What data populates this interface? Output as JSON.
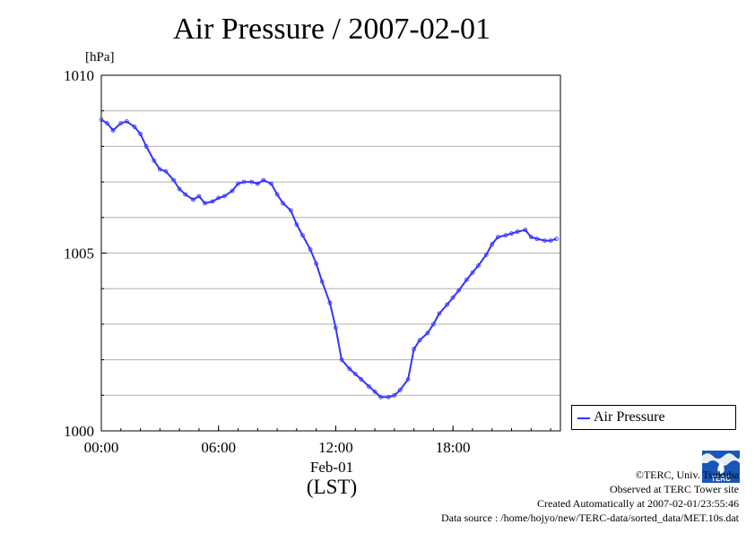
{
  "chart_data": {
    "type": "line",
    "title": "Air Pressure / 2007-02-01",
    "ylabel": "[hPa]",
    "ylim": [
      1000,
      1010
    ],
    "yticks": [
      "1000",
      "1005",
      "1010"
    ],
    "xlim": [
      0,
      23.5
    ],
    "xticks": [
      "00:00",
      "06:00",
      "12:00",
      "18:00"
    ],
    "date_label": "Feb-01",
    "tz_label": "(LST)",
    "grid": true,
    "legend_position": "right-bottom",
    "series": [
      {
        "name": "Air Pressure",
        "color": "#3333ff",
        "x": [
          0,
          0.3,
          0.6,
          1.0,
          1.3,
          1.7,
          2.0,
          2.3,
          2.7,
          3.0,
          3.3,
          3.7,
          4.0,
          4.3,
          4.7,
          5.0,
          5.3,
          5.7,
          6.0,
          6.3,
          6.7,
          7.0,
          7.3,
          7.7,
          8.0,
          8.3,
          8.7,
          9.0,
          9.3,
          9.7,
          10.0,
          10.3,
          10.7,
          11.0,
          11.3,
          11.7,
          12.0,
          12.3,
          12.7,
          13.0,
          13.3,
          13.7,
          14.0,
          14.3,
          14.7,
          15.0,
          15.3,
          15.7,
          16.0,
          16.3,
          16.7,
          17.0,
          17.3,
          17.7,
          18.0,
          18.3,
          18.7,
          19.0,
          19.3,
          19.7,
          20.0,
          20.3,
          20.7,
          21.0,
          21.3,
          21.7,
          22.0,
          22.3,
          22.7,
          23.0,
          23.3
        ],
        "y": [
          1008.75,
          1008.65,
          1008.45,
          1008.65,
          1008.7,
          1008.55,
          1008.35,
          1008.0,
          1007.6,
          1007.35,
          1007.3,
          1007.05,
          1006.8,
          1006.65,
          1006.5,
          1006.6,
          1006.4,
          1006.45,
          1006.55,
          1006.6,
          1006.75,
          1006.95,
          1007.0,
          1007.0,
          1006.95,
          1007.05,
          1006.95,
          1006.65,
          1006.4,
          1006.2,
          1005.8,
          1005.5,
          1005.1,
          1004.7,
          1004.2,
          1003.6,
          1002.9,
          1002.0,
          1001.75,
          1001.6,
          1001.45,
          1001.25,
          1001.1,
          1000.95,
          1000.95,
          1001.0,
          1001.15,
          1001.45,
          1002.3,
          1002.55,
          1002.75,
          1003.0,
          1003.3,
          1003.55,
          1003.75,
          1003.95,
          1004.25,
          1004.45,
          1004.65,
          1004.95,
          1005.25,
          1005.45,
          1005.5,
          1005.55,
          1005.6,
          1005.65,
          1005.45,
          1005.4,
          1005.35,
          1005.35,
          1005.4
        ]
      }
    ]
  },
  "credits": {
    "copyright": "©TERC, Univ. Tsukuba",
    "observed": "Observed at TERC Tower site",
    "created": "Created Automatically at 2007-02-01/23:55:46",
    "source": "Data source : /home/hojyo/new/TERC-data/sorted_data/MET.10s.dat"
  },
  "logo": {
    "icon": "terc-logo-icon",
    "text": "TERC",
    "color": "#1a56b8"
  }
}
